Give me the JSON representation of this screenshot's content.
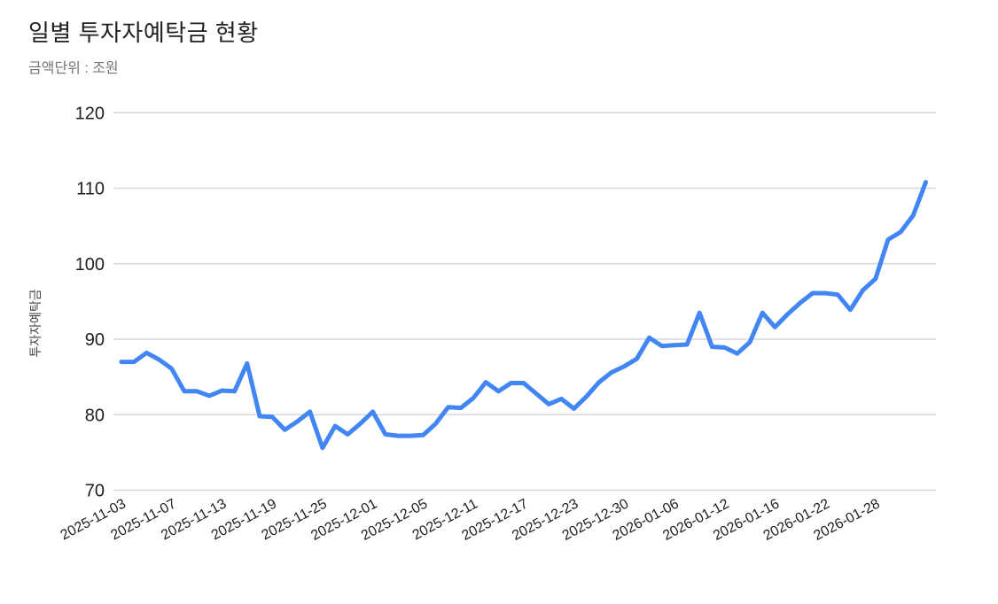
{
  "header": {
    "title": "일별 투자자예탁금 현황",
    "subtitle": "금액단위 : 조원"
  },
  "chart_data": {
    "type": "line",
    "title": "일별 투자자예탁금 현황",
    "subtitle": "금액단위 : 조원",
    "xlabel": "",
    "ylabel": "투자자예탁금",
    "unit": "조원",
    "ylim": [
      70,
      120
    ],
    "yticks": [
      70,
      80,
      90,
      100,
      110,
      120
    ],
    "grid": "horizontal",
    "legend": "none",
    "x_tick_every": 4,
    "x_tick_labels": [
      "2025-11-03",
      "2025-11-07",
      "2025-11-13",
      "2025-11-19",
      "2025-11-25",
      "2025-12-01",
      "2025-12-05",
      "2025-12-11",
      "2025-12-17",
      "2025-12-23",
      "2025-12-30",
      "2026-01-06",
      "2026-01-12",
      "2026-01-16",
      "2026-01-22",
      "2026-01-28"
    ],
    "series": [
      {
        "name": "투자자예탁금",
        "values": [
          87.0,
          87.0,
          88.2,
          87.3,
          86.1,
          83.1,
          83.1,
          82.5,
          83.2,
          83.1,
          86.8,
          79.8,
          79.7,
          78.0,
          79.1,
          80.4,
          75.6,
          78.5,
          77.4,
          78.8,
          80.4,
          77.4,
          77.2,
          77.2,
          77.3,
          78.8,
          81.0,
          80.9,
          82.2,
          84.3,
          83.1,
          84.2,
          84.2,
          82.8,
          81.4,
          82.1,
          80.8,
          82.4,
          84.3,
          85.6,
          86.4,
          87.4,
          90.2,
          89.1,
          89.2,
          89.3,
          93.5,
          89.0,
          88.9,
          88.1,
          89.6,
          93.5,
          91.6,
          93.3,
          94.8,
          96.1,
          96.1,
          95.9,
          93.9,
          96.5,
          98.0,
          103.2,
          104.2,
          106.4,
          110.8
        ]
      }
    ],
    "colors": {
      "line": "#4285f4",
      "grid": "#d9d9d9",
      "title_text": "#212121",
      "subtitle_text": "#757575",
      "axis_tick_text": "#1f1f1f",
      "y_axis_title_text": "#424242",
      "background": "#ffffff"
    }
  }
}
